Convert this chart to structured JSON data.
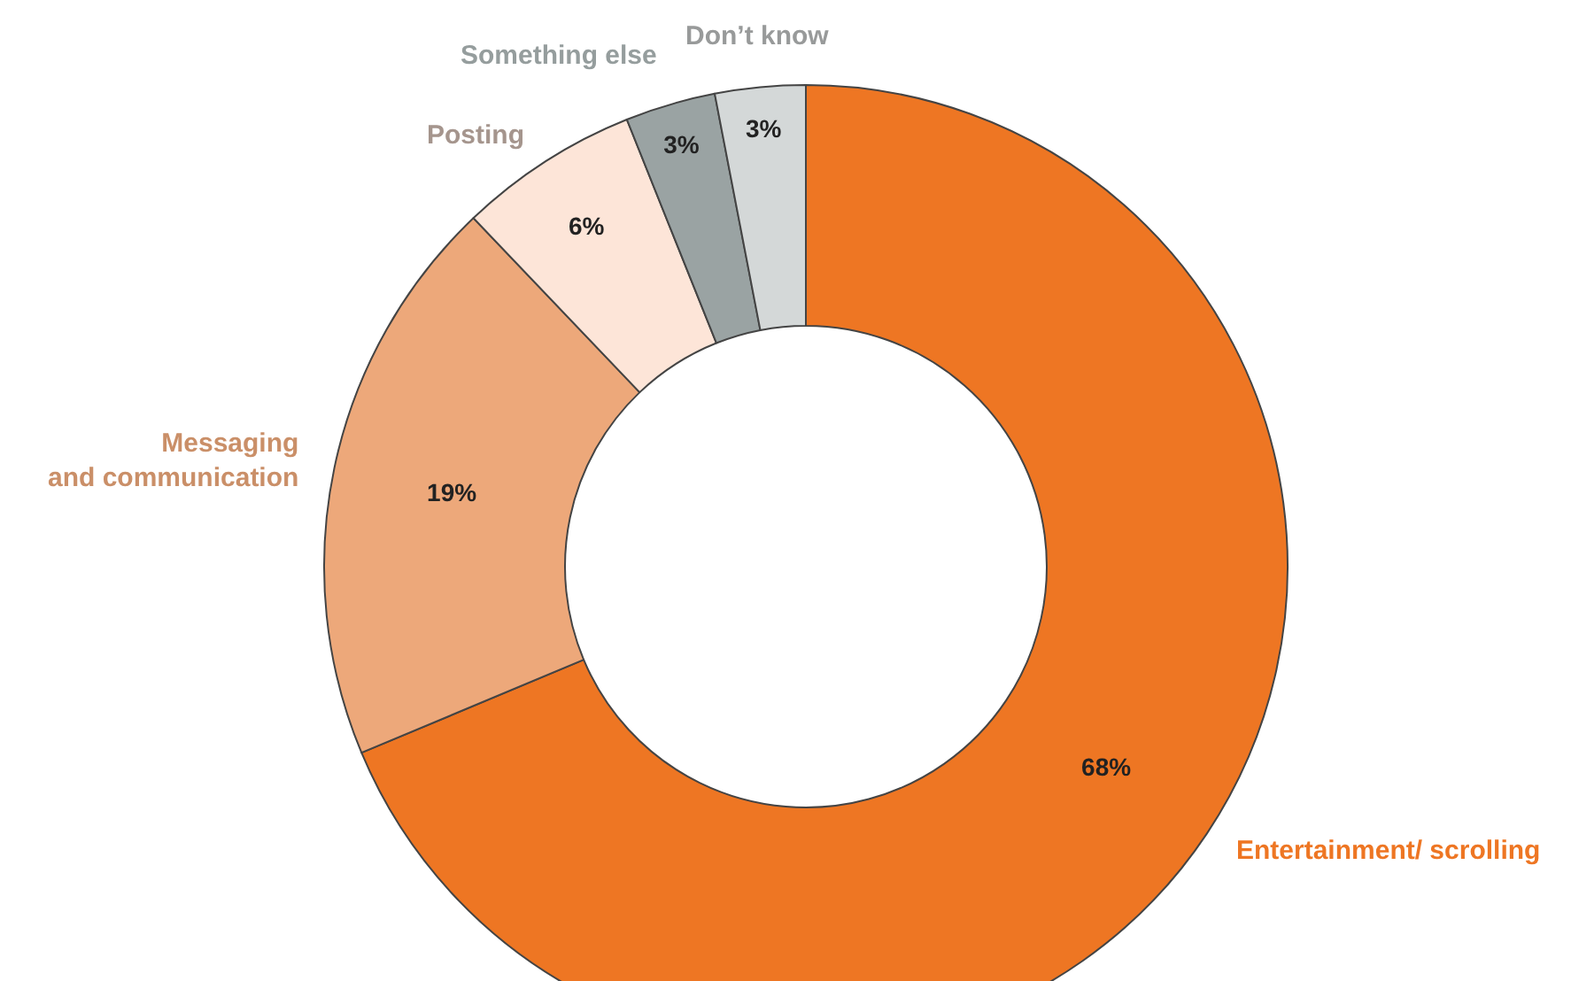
{
  "chart_data": {
    "type": "donut",
    "categories": [
      "Entertainment/ scrolling",
      "Messaging and communication",
      "Posting",
      "Something else",
      "Don’t know"
    ],
    "values": [
      68,
      19,
      6,
      3,
      3
    ],
    "value_labels": [
      "68%",
      "19%",
      "6%",
      "3%",
      "3%"
    ],
    "colors": [
      "#ee7623",
      "#eda87a",
      "#fde5d8",
      "#9aa3a3",
      "#d4d8d8"
    ]
  }
}
